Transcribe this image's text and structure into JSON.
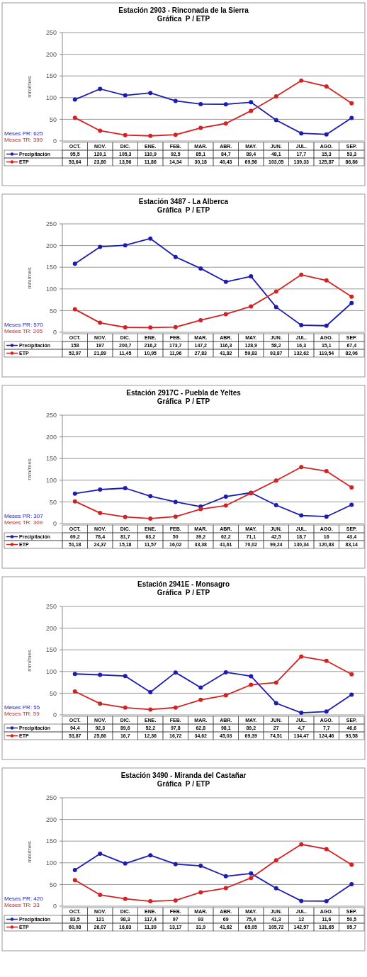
{
  "chart_data": [
    {
      "type": "line",
      "title": "Estación 2903 - Rinconada de la Sierra",
      "subtitle": "Gráfica  P / ETP",
      "ylabel": "mm/mes",
      "categories": [
        "OCT.",
        "NOV.",
        "DIC.",
        "ENE.",
        "FEB.",
        "MAR.",
        "ABR.",
        "MAY.",
        "JUN.",
        "JUL.",
        "AGO.",
        "SEP."
      ],
      "ylim": [
        0,
        250
      ],
      "yticks": [
        0,
        50,
        100,
        150,
        200,
        250
      ],
      "grid": "y",
      "legend": "bottom",
      "marker": "circle",
      "annotations": [
        "Meses PR: 625",
        "Meses TR: 399"
      ],
      "series": [
        {
          "name": "Precipitación",
          "color": "#1c1cb0",
          "values": [
            95.5,
            120.1,
            105.3,
            110.9,
            92.5,
            85.1,
            84.7,
            89.4,
            48.1,
            17.7,
            15.3,
            53.3
          ],
          "value_labels": [
            "95,5",
            "120,1",
            "105,3",
            "110,9",
            "92,5",
            "85,1",
            "84,7",
            "89,4",
            "48,1",
            "17,7",
            "15,3",
            "53,3"
          ]
        },
        {
          "name": "ETP",
          "color": "#d42222",
          "values": [
            53.64,
            23.8,
            13.56,
            11.86,
            14.34,
            30.18,
            40.43,
            69.56,
            103.05,
            139.33,
            125.87,
            86.86
          ],
          "value_labels": [
            "53,64",
            "23,80",
            "13,56",
            "11,86",
            "14,34",
            "30,18",
            "40,43",
            "69,56",
            "103,05",
            "139,33",
            "125,87",
            "86,86"
          ]
        }
      ]
    },
    {
      "type": "line",
      "title": "Estación 3487 - La Alberca",
      "subtitle": "Gráfica  P / ETP",
      "ylabel": "mm/mes",
      "categories": [
        "OCT.",
        "NOV.",
        "DIC.",
        "ENE.",
        "FEB.",
        "MAR.",
        "ABR.",
        "MAY.",
        "JUN.",
        "JUL.",
        "AGO.",
        "SEP."
      ],
      "ylim": [
        0,
        250
      ],
      "yticks": [
        0,
        50,
        100,
        150,
        200,
        250
      ],
      "grid": "y",
      "legend": "bottom",
      "marker": "circle",
      "annotations": [
        "Meses PR: 570",
        "Meses TR: 205"
      ],
      "series": [
        {
          "name": "Precipitación",
          "color": "#1c1cb0",
          "values": [
            158,
            197,
            200.7,
            216.2,
            173.7,
            147.2,
            116.3,
            128.9,
            58.2,
            16.3,
            15.1,
            67.4
          ],
          "value_labels": [
            "158",
            "197",
            "200,7",
            "216,2",
            "173,7",
            "147,2",
            "116,3",
            "128,9",
            "58,2",
            "16,3",
            "15,1",
            "67,4"
          ]
        },
        {
          "name": "ETP",
          "color": "#d42222",
          "values": [
            52.97,
            21.89,
            11.45,
            10.95,
            11.96,
            27.83,
            41.82,
            59.83,
            93.87,
            132.62,
            119.54,
            82.06
          ],
          "value_labels": [
            "52,97",
            "21,89",
            "11,45",
            "10,95",
            "11,96",
            "27,83",
            "41,82",
            "59,83",
            "93,87",
            "132,62",
            "119,54",
            "82,06"
          ]
        }
      ]
    },
    {
      "type": "line",
      "title": "Estación 2917C - Puebla de Yeltes",
      "subtitle": "Gráfica  P / ETP",
      "ylabel": "mm/mes",
      "categories": [
        "OCT.",
        "NOV.",
        "DIC.",
        "ENE.",
        "FEB.",
        "MAR.",
        "ABR.",
        "MAY.",
        "JUN.",
        "JUL.",
        "AGO.",
        "SEP."
      ],
      "ylim": [
        0,
        250
      ],
      "yticks": [
        0,
        50,
        100,
        150,
        200,
        250
      ],
      "grid": "y",
      "legend": "bottom",
      "marker": "circle",
      "annotations": [
        "Meses PR: 307",
        "Meses TR: 309"
      ],
      "series": [
        {
          "name": "Precipitación",
          "color": "#1c1cb0",
          "values": [
            69.2,
            78.4,
            81.7,
            63.2,
            50,
            39.2,
            62.2,
            71.1,
            42.5,
            18.7,
            16,
            43.4
          ],
          "value_labels": [
            "69,2",
            "78,4",
            "81,7",
            "63,2",
            "50",
            "39,2",
            "62,2",
            "71,1",
            "42,5",
            "18,7",
            "16",
            "43,4"
          ]
        },
        {
          "name": "ETP",
          "color": "#d42222",
          "values": [
            51.18,
            24.37,
            15.18,
            11.57,
            16.02,
            33.38,
            41.61,
            70.02,
            99.24,
            130.34,
            120.83,
            83.14
          ],
          "value_labels": [
            "51,18",
            "24,37",
            "15,18",
            "11,57",
            "16,02",
            "33,38",
            "41,61",
            "70,02",
            "99,24",
            "130,34",
            "120,83",
            "83,14"
          ]
        }
      ]
    },
    {
      "type": "line",
      "title": "Estación 2941E - Monsagro",
      "subtitle": "Gráfica  P / ETP",
      "ylabel": "mm/mes",
      "categories": [
        "OCT.",
        "NOV.",
        "DIC.",
        "ENE.",
        "FEB.",
        "MAR.",
        "ABR.",
        "MAY.",
        "JUN.",
        "JUL.",
        "AGO.",
        "SEP."
      ],
      "ylim": [
        0,
        250
      ],
      "yticks": [
        0,
        50,
        100,
        150,
        200,
        250
      ],
      "grid": "y",
      "legend": "bottom",
      "marker": "circle",
      "annotations": [
        "Meses PR: 55",
        "Meses TR: 59"
      ],
      "series": [
        {
          "name": "Precipitación",
          "color": "#1c1cb0",
          "values": [
            94.4,
            92.3,
            89.6,
            52.2,
            97.8,
            62.8,
            98.1,
            89.2,
            27,
            4.7,
            7.7,
            46.6
          ],
          "value_labels": [
            "94,4",
            "92,3",
            "89,6",
            "52,2",
            "97,8",
            "62,8",
            "98,1",
            "89,2",
            "27",
            "4,7",
            "7,7",
            "46,6"
          ]
        },
        {
          "name": "ETP",
          "color": "#d42222",
          "values": [
            53.87,
            25.86,
            16.7,
            12.36,
            16.72,
            34.62,
            45.03,
            69.39,
            74.51,
            134.47,
            124.46,
            93.58
          ],
          "value_labels": [
            "53,87",
            "25,86",
            "16,7",
            "12,36",
            "16,72",
            "34,62",
            "45,03",
            "69,39",
            "74,51",
            "134,47",
            "124,46",
            "93,58"
          ]
        }
      ]
    },
    {
      "type": "line",
      "title": "Estación 3490 - Miranda del Castañar",
      "subtitle": "Gráfica  P / ETP",
      "ylabel": "mm/mes",
      "categories": [
        "OCT.",
        "NOV.",
        "DIC.",
        "ENE.",
        "FEB.",
        "MAR.",
        "ABR.",
        "MAY.",
        "JUN.",
        "JUL.",
        "AGO.",
        "SEP."
      ],
      "ylim": [
        0,
        250
      ],
      "yticks": [
        0,
        50,
        100,
        150,
        200,
        250
      ],
      "grid": "y",
      "legend": "bottom",
      "marker": "circle",
      "annotations": [
        "Meses PR: 420",
        "Meses TR: 33"
      ],
      "series": [
        {
          "name": "Precipitación",
          "color": "#1c1cb0",
          "values": [
            83.5,
            121,
            98.3,
            117.4,
            97,
            93,
            69,
            75.4,
            41.3,
            12,
            11.6,
            50.5
          ],
          "value_labels": [
            "83,5",
            "121",
            "98,3",
            "117,4",
            "97",
            "93",
            "69",
            "75,4",
            "41,3",
            "12",
            "11,6",
            "50,5"
          ]
        },
        {
          "name": "ETP",
          "color": "#d42222",
          "values": [
            60.08,
            26.07,
            16.83,
            11.39,
            13.17,
            31.9,
            41.62,
            65.05,
            105.72,
            142.57,
            131.65,
            95.7
          ],
          "value_labels": [
            "60,08",
            "26,07",
            "16,83",
            "11,39",
            "13,17",
            "31,9",
            "41,62",
            "65,05",
            "105,72",
            "142,57",
            "131,65",
            "95,7"
          ]
        }
      ]
    }
  ]
}
